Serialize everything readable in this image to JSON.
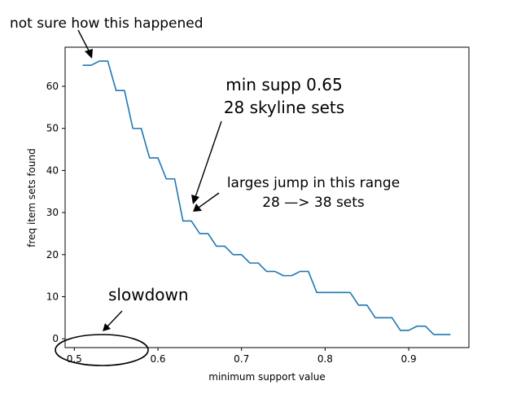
{
  "chart_data": {
    "type": "line",
    "title": "",
    "xlabel": "minimum support value",
    "ylabel": "freq item sets found",
    "xlim": [
      0.489,
      0.972
    ],
    "ylim": [
      -2.1,
      69.3
    ],
    "xticks": [
      0.5,
      0.6,
      0.7,
      0.8,
      0.9
    ],
    "xtick_labels": [
      "0.5",
      "0.6",
      "0.7",
      "0.8",
      "0.9"
    ],
    "yticks": [
      0,
      10,
      20,
      30,
      40,
      50,
      60
    ],
    "ytick_labels": [
      "0",
      "10",
      "20",
      "30",
      "40",
      "50",
      "60"
    ],
    "grid": false,
    "legend": "none",
    "series": [
      {
        "color": "#1f77b4",
        "x": [
          0.51,
          0.52,
          0.53,
          0.54,
          0.55,
          0.56,
          0.57,
          0.58,
          0.59,
          0.6,
          0.61,
          0.62,
          0.63,
          0.64,
          0.65,
          0.66,
          0.67,
          0.68,
          0.69,
          0.7,
          0.71,
          0.72,
          0.73,
          0.74,
          0.75,
          0.76,
          0.77,
          0.78,
          0.79,
          0.8,
          0.81,
          0.82,
          0.83,
          0.84,
          0.85,
          0.86,
          0.87,
          0.88,
          0.89,
          0.9,
          0.91,
          0.92,
          0.93,
          0.94,
          0.95
        ],
        "y": [
          65,
          65,
          66,
          66,
          59,
          59,
          50,
          50,
          43,
          43,
          38,
          38,
          28,
          28,
          25,
          25,
          22,
          22,
          20,
          20,
          18,
          18,
          16,
          16,
          15,
          15,
          16,
          16,
          11,
          11,
          11,
          11,
          11,
          8,
          8,
          5,
          5,
          5,
          2,
          2,
          3,
          3,
          1,
          1,
          1
        ]
      }
    ],
    "annotations": [
      {
        "name": "not-sure",
        "text": [
          "not sure how this happened"
        ]
      },
      {
        "name": "min-supp",
        "text": [
          "min supp 0.65",
          "28 skyline sets"
        ]
      },
      {
        "name": "largest-jump",
        "text": [
          "larges jump in this range",
          "28 —> 38 sets"
        ]
      },
      {
        "name": "slowdown",
        "text": [
          "slowdown"
        ]
      }
    ]
  }
}
